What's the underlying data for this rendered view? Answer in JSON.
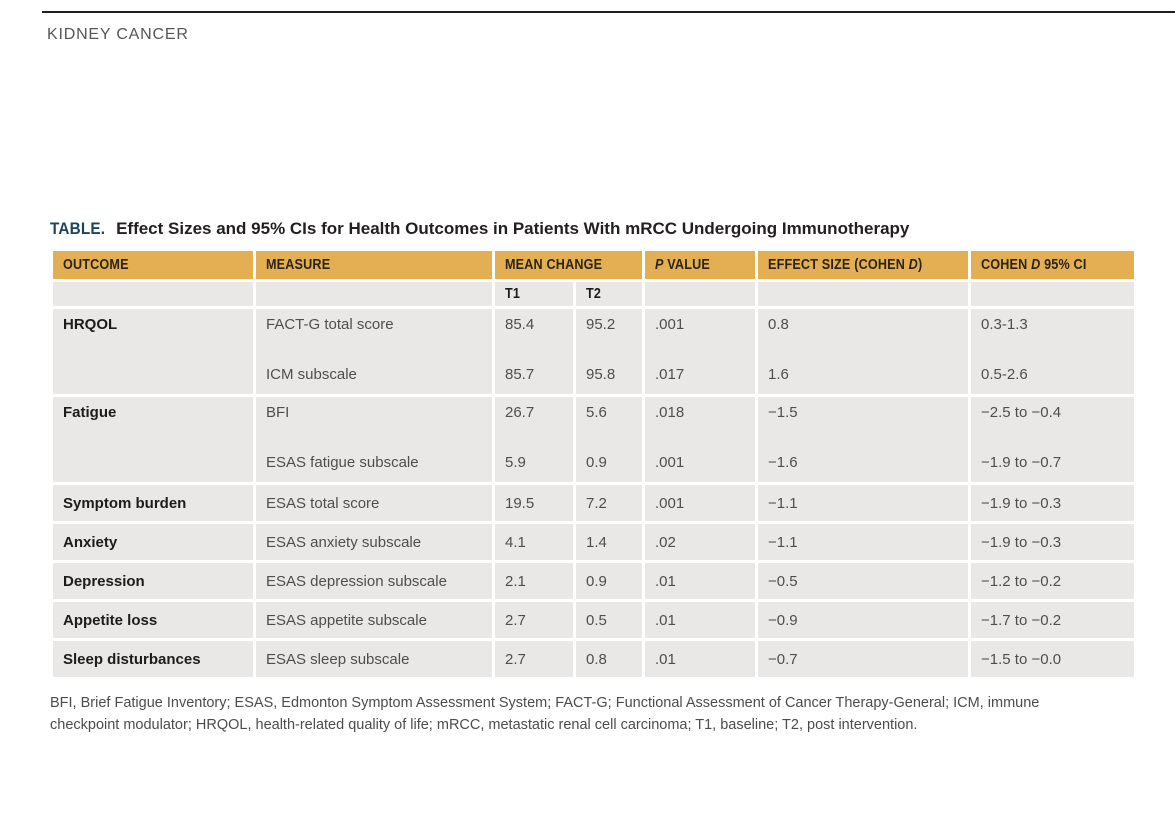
{
  "page": {
    "section_label": "KIDNEY CANCER"
  },
  "colors": {
    "header_gold": "#e3af52",
    "row_gray": "#e9e8e6",
    "table_label_navy": "#1d4458",
    "rule_black": "#231f20"
  },
  "table": {
    "label": "TABLE.",
    "title": "Effect Sizes and 95% CIs for Health Outcomes in Patients With mRCC Undergoing Immunotherapy",
    "columns": {
      "outcome": "OUTCOME",
      "measure": "MEASURE",
      "mean_change": "MEAN CHANGE",
      "t1": "T1",
      "t2": "T2",
      "p_italic": "P",
      "p_rest": "VALUE",
      "effect_pre": "EFFECT SIZE (COHEN",
      "effect_italic": "D",
      "effect_post": ")",
      "ci_pre": "COHEN",
      "ci_italic": "D",
      "ci_post": "95% CI"
    },
    "rows": [
      {
        "outcome": "HRQOL",
        "entries": [
          {
            "measure": "FACT-G total score",
            "t1": "85.4",
            "t2": "95.2",
            "p": ".001",
            "effect": "0.8",
            "ci": "0.3-1.3"
          },
          {
            "measure": "ICM subscale",
            "t1": "85.7",
            "t2": "95.8",
            "p": ".017",
            "effect": "1.6",
            "ci": "0.5-2.6"
          }
        ]
      },
      {
        "outcome": "Fatigue",
        "entries": [
          {
            "measure": "BFI",
            "t1": "26.7",
            "t2": "5.6",
            "p": ".018",
            "effect": "−1.5",
            "ci": "−2.5 to −0.4"
          },
          {
            "measure": "ESAS fatigue subscale",
            "t1": "5.9",
            "t2": "0.9",
            "p": ".001",
            "effect": "−1.6",
            "ci": "−1.9 to −0.7"
          }
        ]
      },
      {
        "outcome": "Symptom burden",
        "entries": [
          {
            "measure": "ESAS total score",
            "t1": "19.5",
            "t2": "7.2",
            "p": ".001",
            "effect": "−1.1",
            "ci": "−1.9 to −0.3"
          }
        ]
      },
      {
        "outcome": "Anxiety",
        "entries": [
          {
            "measure": "ESAS anxiety subscale",
            "t1": "4.1",
            "t2": "1.4",
            "p": ".02",
            "effect": "−1.1",
            "ci": "−1.9 to −0.3"
          }
        ]
      },
      {
        "outcome": "Depression",
        "entries": [
          {
            "measure": "ESAS depression subscale",
            "t1": "2.1",
            "t2": "0.9",
            "p": ".01",
            "effect": "−0.5",
            "ci": "−1.2 to −0.2"
          }
        ]
      },
      {
        "outcome": "Appetite loss",
        "entries": [
          {
            "measure": "ESAS appetite subscale",
            "t1": "2.7",
            "t2": "0.5",
            "p": ".01",
            "effect": "−0.9",
            "ci": "−1.7 to −0.2"
          }
        ]
      },
      {
        "outcome": "Sleep disturbances",
        "entries": [
          {
            "measure": "ESAS sleep subscale",
            "t1": "2.7",
            "t2": "0.8",
            "p": ".01",
            "effect": "−0.7",
            "ci": "−1.5 to −0.0"
          }
        ]
      }
    ],
    "footnote": "BFI, Brief Fatigue Inventory; ESAS, Edmonton Symptom Assessment System; FACT-G; Functional Assessment of Cancer Therapy-General; ICM, immune checkpoint modulator; HRQOL, health-related quality of life; mRCC, metastatic renal cell carcinoma; T1, baseline; T2, post intervention."
  }
}
